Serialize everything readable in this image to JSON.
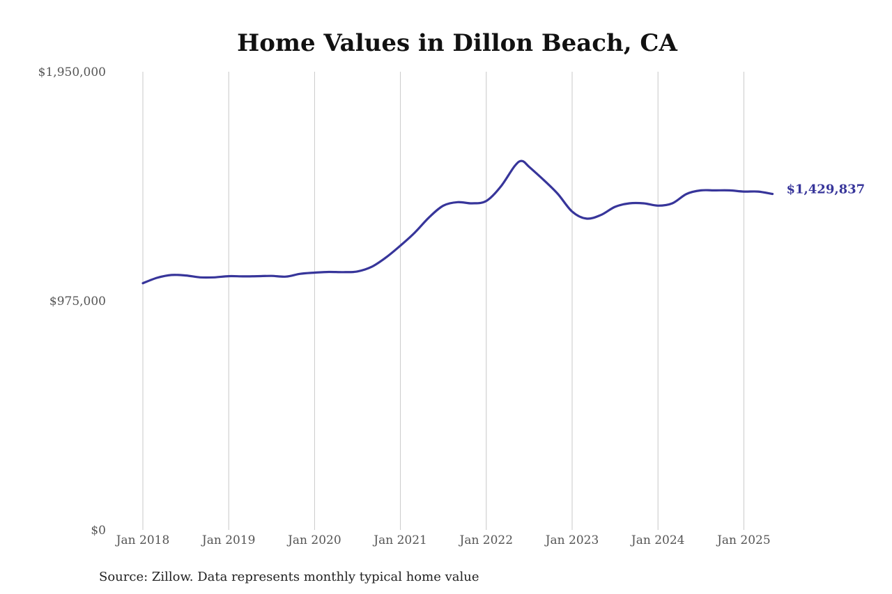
{
  "chart_data": {
    "type": "line",
    "title": "Home Values in Dillon Beach, CA",
    "xlabel": "",
    "ylabel": "",
    "ylim": [
      0,
      1950000
    ],
    "y_ticks": [
      0,
      975000,
      1950000
    ],
    "y_tick_labels": [
      "$0",
      "$975,000",
      "$1,950,000"
    ],
    "x_ticks": [
      "2018-01",
      "2019-01",
      "2020-01",
      "2021-01",
      "2022-01",
      "2023-01",
      "2024-01",
      "2025-01"
    ],
    "x_tick_labels": [
      "Jan 2018",
      "Jan 2019",
      "Jan 2020",
      "Jan 2021",
      "Jan 2022",
      "Jan 2023",
      "Jan 2024",
      "Jan 2025"
    ],
    "grid": "vertical",
    "line_color": "#37359a",
    "end_label": "$1,429,837",
    "x": [
      "2018-01",
      "2018-03",
      "2018-05",
      "2018-07",
      "2018-09",
      "2018-11",
      "2019-01",
      "2019-03",
      "2019-05",
      "2019-07",
      "2019-09",
      "2019-11",
      "2020-01",
      "2020-03",
      "2020-05",
      "2020-07",
      "2020-09",
      "2020-11",
      "2021-01",
      "2021-03",
      "2021-05",
      "2021-07",
      "2021-09",
      "2021-11",
      "2022-01",
      "2022-03",
      "2022-05",
      "2022-06",
      "2022-07",
      "2022-09",
      "2022-11",
      "2023-01",
      "2023-03",
      "2023-05",
      "2023-07",
      "2023-09",
      "2023-11",
      "2024-01",
      "2024-03",
      "2024-05",
      "2024-07",
      "2024-09",
      "2024-11",
      "2025-01",
      "2025-03",
      "2025-05"
    ],
    "values": [
      1050000,
      1073000,
      1085000,
      1083000,
      1075000,
      1075000,
      1080000,
      1079000,
      1080000,
      1081000,
      1078000,
      1090000,
      1095000,
      1098000,
      1097000,
      1100000,
      1120000,
      1160000,
      1210000,
      1265000,
      1330000,
      1380000,
      1395000,
      1390000,
      1400000,
      1460000,
      1550000,
      1570000,
      1545000,
      1490000,
      1430000,
      1355000,
      1325000,
      1340000,
      1375000,
      1390000,
      1390000,
      1380000,
      1390000,
      1430000,
      1445000,
      1445000,
      1445000,
      1440000,
      1440000,
      1429837
    ]
  },
  "footer": {
    "source": "Source: Zillow. Data represents monthly typical home value"
  }
}
